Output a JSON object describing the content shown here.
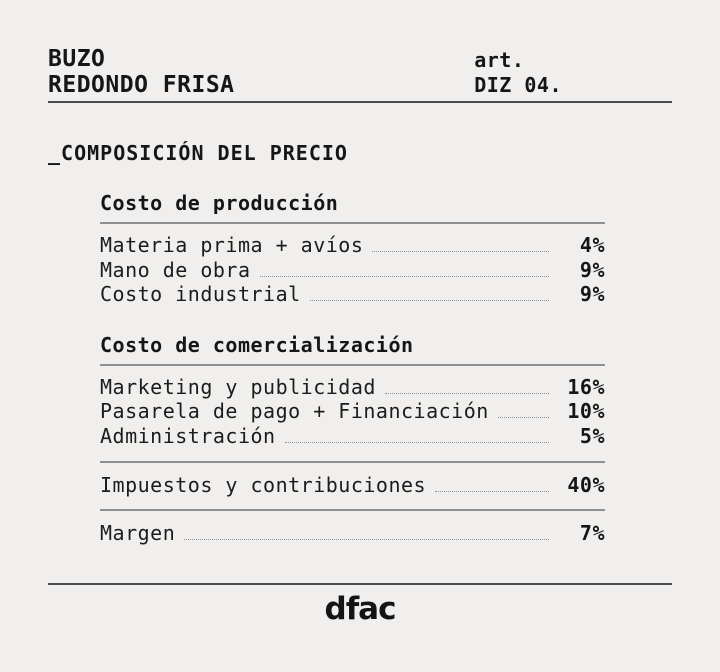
{
  "header": {
    "product_name": "BUZO\nREDONDO FRISA",
    "art_label": "art.",
    "art_code": "DIZ 04."
  },
  "title": "_COMPOSICIÓN DEL PRECIO",
  "sections": [
    {
      "heading": "Costo de producción",
      "rows": [
        {
          "label": "Materia prima + avíos",
          "value": "4%"
        },
        {
          "label": "Mano de obra",
          "value": "9%"
        },
        {
          "label": "Costo industrial",
          "value": "9%"
        }
      ]
    },
    {
      "heading": "Costo de comercialización",
      "rows": [
        {
          "label": "Marketing y publicidad",
          "value": "16%"
        },
        {
          "label": "Pasarela de pago + Financiación",
          "value": "10%"
        },
        {
          "label": "Administración",
          "value": "5%"
        }
      ]
    }
  ],
  "summary_rows": [
    {
      "label": "Impuestos y contribuciones",
      "value": "40%"
    },
    {
      "label": "Margen",
      "value": "7%"
    }
  ],
  "footer": {
    "logo_text": "dfac"
  },
  "colors": {
    "background": "#f0efed",
    "text": "#161616",
    "rule_dark": "#4d4d4d",
    "rule_light": "#8f8f8f",
    "leader_dots": "#909090"
  },
  "chart_data": {
    "type": "table",
    "title": "_COMPOSICIÓN DEL PRECIO",
    "categories": [
      "Materia prima + avíos",
      "Mano de obra",
      "Costo industrial",
      "Marketing y publicidad",
      "Pasarela de pago + Financiación",
      "Administración",
      "Impuestos y contribuciones",
      "Margen"
    ],
    "values": [
      4,
      9,
      9,
      16,
      10,
      5,
      40,
      7
    ],
    "unit": "%",
    "groups": {
      "Costo de producción": [
        "Materia prima + avíos",
        "Mano de obra",
        "Costo industrial"
      ],
      "Costo de comercialización": [
        "Marketing y publicidad",
        "Pasarela de pago + Financiación",
        "Administración"
      ]
    }
  }
}
